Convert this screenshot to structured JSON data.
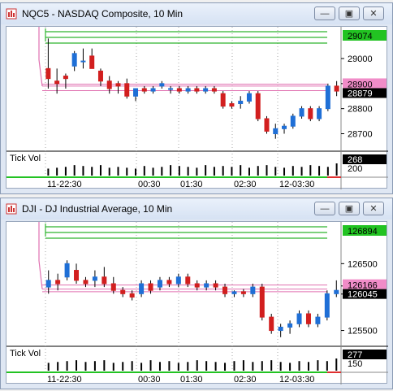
{
  "windows": [
    {
      "title": "NQC5 - NASDAQ Composite, 10 Min",
      "buttons": {
        "minimize": "—",
        "maximize": "▣",
        "close": "✕"
      },
      "price_axis": [
        "29000",
        "28900",
        "28800",
        "28700"
      ],
      "price_range": [
        28640,
        29120
      ],
      "badges": {
        "high": "29074",
        "pink": "28900",
        "last": "28879"
      },
      "green_levels": [
        29074,
        29055,
        29038
      ],
      "pink_levels": [
        28898,
        28890,
        28872
      ],
      "tick_vol_label": "Tick Vol",
      "tick_vol_value": "268",
      "tick_vol_axis": "200",
      "time_labels": [
        "11-22:30",
        "00:30",
        "01:30",
        "02:30",
        "12-03:30"
      ],
      "candles": [
        {
          "o": 28960,
          "h": 29080,
          "l": 28880,
          "c": 28920
        },
        {
          "o": 28910,
          "h": 28960,
          "l": 28860,
          "c": 28900
        },
        {
          "o": 28930,
          "h": 28940,
          "l": 28880,
          "c": 28920
        },
        {
          "o": 28970,
          "h": 29030,
          "l": 28950,
          "c": 29020
        },
        {
          "o": 28990,
          "h": 29040,
          "l": 28960,
          "c": 28990
        },
        {
          "o": 29010,
          "h": 29040,
          "l": 28960,
          "c": 28960
        },
        {
          "o": 28950,
          "h": 28960,
          "l": 28890,
          "c": 28910
        },
        {
          "o": 28910,
          "h": 28930,
          "l": 28860,
          "c": 28880
        },
        {
          "o": 28900,
          "h": 28910,
          "l": 28860,
          "c": 28890
        },
        {
          "o": 28900,
          "h": 28920,
          "l": 28840,
          "c": 28850
        },
        {
          "o": 28850,
          "h": 28880,
          "l": 28830,
          "c": 28880
        },
        {
          "o": 28880,
          "h": 28890,
          "l": 28860,
          "c": 28870
        },
        {
          "o": 28870,
          "h": 28890,
          "l": 28860,
          "c": 28880
        },
        {
          "o": 28890,
          "h": 28910,
          "l": 28880,
          "c": 28900
        },
        {
          "o": 28880,
          "h": 28890,
          "l": 28860,
          "c": 28880
        },
        {
          "o": 28880,
          "h": 28890,
          "l": 28860,
          "c": 28870
        },
        {
          "o": 28870,
          "h": 28890,
          "l": 28860,
          "c": 28880
        },
        {
          "o": 28880,
          "h": 28890,
          "l": 28860,
          "c": 28870
        },
        {
          "o": 28870,
          "h": 28890,
          "l": 28860,
          "c": 28880
        },
        {
          "o": 28880,
          "h": 28890,
          "l": 28860,
          "c": 28870
        },
        {
          "o": 28860,
          "h": 28870,
          "l": 28800,
          "c": 28810
        },
        {
          "o": 28820,
          "h": 28830,
          "l": 28800,
          "c": 28810
        },
        {
          "o": 28820,
          "h": 28850,
          "l": 28800,
          "c": 28830
        },
        {
          "o": 28830,
          "h": 28870,
          "l": 28820,
          "c": 28860
        },
        {
          "o": 28860,
          "h": 28870,
          "l": 28750,
          "c": 28760
        },
        {
          "o": 28760,
          "h": 28770,
          "l": 28700,
          "c": 28710
        },
        {
          "o": 28700,
          "h": 28740,
          "l": 28680,
          "c": 28720
        },
        {
          "o": 28720,
          "h": 28740,
          "l": 28700,
          "c": 28730
        },
        {
          "o": 28730,
          "h": 28780,
          "l": 28720,
          "c": 28770
        },
        {
          "o": 28770,
          "h": 28810,
          "l": 28760,
          "c": 28800
        },
        {
          "o": 28800,
          "h": 28810,
          "l": 28750,
          "c": 28760
        },
        {
          "o": 28760,
          "h": 28810,
          "l": 28750,
          "c": 28800
        },
        {
          "o": 28800,
          "h": 28900,
          "l": 28790,
          "c": 28890
        },
        {
          "o": 28890,
          "h": 28910,
          "l": 28850,
          "c": 28870
        }
      ],
      "volumes": [
        8,
        9,
        10,
        12,
        11,
        10,
        12,
        9,
        10,
        9,
        8,
        11,
        9,
        10,
        12,
        11,
        10,
        9,
        12,
        10,
        11,
        10,
        12,
        9,
        11,
        12,
        10,
        9,
        11,
        10,
        12,
        11,
        10,
        14
      ]
    },
    {
      "title": "DJI - DJ Industrial Average, 10 Min",
      "buttons": {
        "minimize": "—",
        "maximize": "▣",
        "close": "✕"
      },
      "price_axis": [
        "126500",
        "126166",
        "126045",
        "125500"
      ],
      "price_range": [
        125300,
        127100
      ],
      "badges": {
        "high": "126894",
        "pink": "126166",
        "last": "126045"
      },
      "green_levels": [
        126894,
        126830,
        126770
      ],
      "pink_levels": [
        126180,
        126120,
        126080
      ],
      "tick_vol_label": "Tick Vol",
      "tick_vol_value": "277",
      "tick_vol_axis": "150",
      "time_labels": [
        "11-22:30",
        "00:30",
        "01:30",
        "02:30",
        "12-03:30"
      ],
      "candles": [
        {
          "o": 126150,
          "h": 126400,
          "l": 126050,
          "c": 126250
        },
        {
          "o": 126250,
          "h": 126350,
          "l": 126100,
          "c": 126200
        },
        {
          "o": 126300,
          "h": 126550,
          "l": 126250,
          "c": 126500
        },
        {
          "o": 126400,
          "h": 126500,
          "l": 126200,
          "c": 126250
        },
        {
          "o": 126250,
          "h": 126300,
          "l": 126150,
          "c": 126200
        },
        {
          "o": 126250,
          "h": 126400,
          "l": 126150,
          "c": 126300
        },
        {
          "o": 126300,
          "h": 126450,
          "l": 126150,
          "c": 126200
        },
        {
          "o": 126200,
          "h": 126300,
          "l": 126050,
          "c": 126100
        },
        {
          "o": 126100,
          "h": 126150,
          "l": 126000,
          "c": 126050
        },
        {
          "o": 126050,
          "h": 126100,
          "l": 125950,
          "c": 126000
        },
        {
          "o": 126050,
          "h": 126250,
          "l": 126000,
          "c": 126200
        },
        {
          "o": 126200,
          "h": 126250,
          "l": 126050,
          "c": 126100
        },
        {
          "o": 126150,
          "h": 126300,
          "l": 126100,
          "c": 126250
        },
        {
          "o": 126250,
          "h": 126300,
          "l": 126150,
          "c": 126200
        },
        {
          "o": 126200,
          "h": 126350,
          "l": 126150,
          "c": 126300
        },
        {
          "o": 126300,
          "h": 126350,
          "l": 126150,
          "c": 126200
        },
        {
          "o": 126200,
          "h": 126250,
          "l": 126100,
          "c": 126150
        },
        {
          "o": 126150,
          "h": 126250,
          "l": 126100,
          "c": 126200
        },
        {
          "o": 126200,
          "h": 126250,
          "l": 126100,
          "c": 126150
        },
        {
          "o": 126150,
          "h": 126200,
          "l": 126000,
          "c": 126050
        },
        {
          "o": 126050,
          "h": 126100,
          "l": 126000,
          "c": 126080
        },
        {
          "o": 126080,
          "h": 126120,
          "l": 126000,
          "c": 126050
        },
        {
          "o": 126050,
          "h": 126200,
          "l": 126000,
          "c": 126150
        },
        {
          "o": 126150,
          "h": 126200,
          "l": 125650,
          "c": 125700
        },
        {
          "o": 125700,
          "h": 125750,
          "l": 125450,
          "c": 125500
        },
        {
          "o": 125500,
          "h": 125600,
          "l": 125400,
          "c": 125550
        },
        {
          "o": 125550,
          "h": 125650,
          "l": 125450,
          "c": 125600
        },
        {
          "o": 125600,
          "h": 125800,
          "l": 125550,
          "c": 125750
        },
        {
          "o": 125750,
          "h": 125800,
          "l": 125550,
          "c": 125600
        },
        {
          "o": 125600,
          "h": 125750,
          "l": 125550,
          "c": 125700
        },
        {
          "o": 125700,
          "h": 126100,
          "l": 125650,
          "c": 126050
        },
        {
          "o": 126050,
          "h": 126250,
          "l": 126000,
          "c": 126100
        }
      ],
      "volumes": [
        9,
        10,
        11,
        12,
        10,
        11,
        12,
        9,
        10,
        11,
        9,
        12,
        10,
        11,
        9,
        10,
        12,
        11,
        10,
        9,
        11,
        12,
        10,
        11,
        12,
        10,
        9,
        11,
        10,
        12,
        11,
        14
      ]
    }
  ]
}
